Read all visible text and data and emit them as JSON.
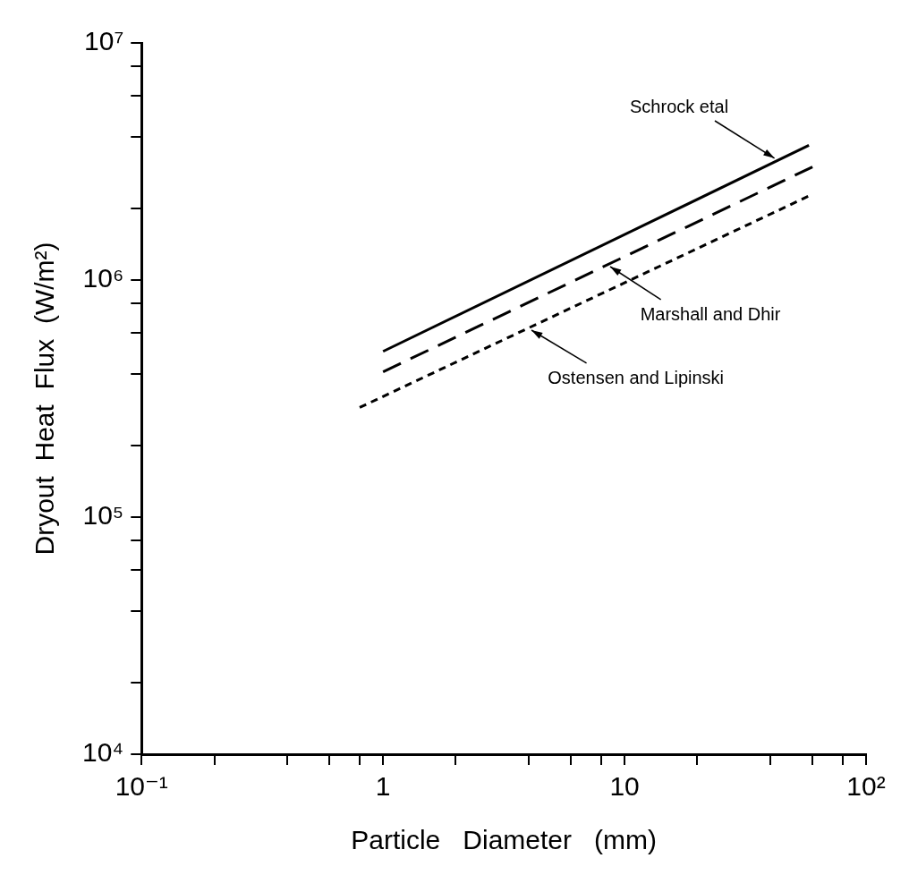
{
  "chart_data": {
    "type": "line",
    "xlabel": "Particle   Diameter   (mm)",
    "ylabel": "Dryout  Heat  Flux  (W/m²)",
    "log": "xy",
    "xlim": [
      0.1,
      100
    ],
    "xticks": [
      {
        "value": 0.1,
        "label": "10⁻¹"
      },
      {
        "value": 0.2,
        "label": null
      },
      {
        "value": 0.4,
        "label": null
      },
      {
        "value": 0.6,
        "label": null
      },
      {
        "value": 0.8,
        "label": null
      },
      1,
      {
        "value": 2,
        "label": null
      },
      {
        "value": 4,
        "label": null
      },
      {
        "value": 6,
        "label": null
      },
      {
        "value": 8,
        "label": null
      },
      10,
      {
        "value": 20,
        "label": null
      },
      {
        "value": 40,
        "label": null
      },
      {
        "value": 60,
        "label": null
      },
      {
        "value": 80,
        "label": null
      },
      {
        "value": 100,
        "label": "10²"
      }
    ],
    "ylim": [
      10000,
      10000000
    ],
    "yticks": [
      {
        "value": 10000,
        "label": "10⁴"
      },
      {
        "value": 20000,
        "label": null
      },
      {
        "value": 40000,
        "label": null
      },
      {
        "value": 60000,
        "label": null
      },
      {
        "value": 80000,
        "label": null
      },
      {
        "value": 100000,
        "label": "10⁵"
      },
      {
        "value": 200000,
        "label": null
      },
      {
        "value": 400000,
        "label": null
      },
      {
        "value": 600000,
        "label": null
      },
      {
        "value": 800000,
        "label": null
      },
      {
        "value": 1000000,
        "label": "10⁶"
      },
      {
        "value": 2000000,
        "label": null
      },
      {
        "value": 4000000,
        "label": null
      },
      {
        "value": 6000000,
        "label": null
      },
      {
        "value": 8000000,
        "label": null
      },
      {
        "value": 10000000,
        "label": "10⁷"
      }
    ],
    "grid": false,
    "legend": false,
    "marker": "none",
    "series": [
      {
        "color": "#000000",
        "line_style": "solid",
        "x": [
          1,
          58
        ],
        "values": [
          500000,
          3700000
        ]
      },
      {
        "color": "#000000",
        "line_style": "dashed",
        "x": [
          1,
          60
        ],
        "values": [
          410000,
          3000000
        ]
      },
      {
        "color": "#000000",
        "line_style": "dotted",
        "x": [
          0.8,
          60
        ],
        "values": [
          290000,
          2300000
        ]
      }
    ],
    "annotations": [
      {
        "text": "Schrock etal",
        "x": 43,
        "y": 3200000
      },
      {
        "text": "Marshall and Dhir",
        "x": 8.5,
        "y": 1160000
      },
      {
        "text": "Ostensen and Lipinski",
        "x": 4,
        "y": 627000
      }
    ]
  }
}
